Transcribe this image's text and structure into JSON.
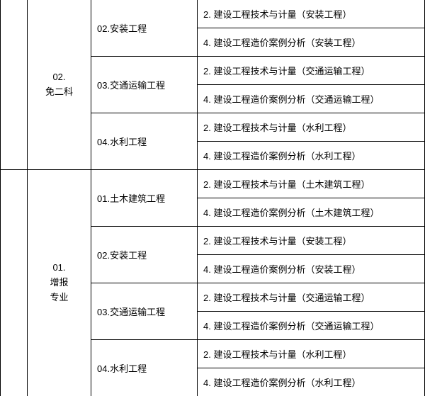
{
  "table": {
    "levels": [
      {
        "code": "02.",
        "name": "免二科",
        "specialties": [
          {
            "label": "02.安装工程",
            "subjects": [
              "2. 建设工程技术与计量（安装工程）",
              "4. 建设工程造价案例分析（安装工程）"
            ]
          },
          {
            "label": "03.交通运输工程",
            "subjects": [
              "2. 建设工程技术与计量（交通运输工程）",
              "4. 建设工程造价案例分析（交通运输工程）"
            ]
          },
          {
            "label": "04.水利工程",
            "subjects": [
              "2. 建设工程技术与计量（水利工程）",
              "4. 建设工程造价案例分析（水利工程）"
            ]
          }
        ]
      },
      {
        "code": "01.",
        "name": "增报",
        "name2": "专业",
        "specialties": [
          {
            "label": "01.土木建筑工程",
            "subjects": [
              "2. 建设工程技术与计量（土木建筑工程）",
              "4. 建设工程造价案例分析（土木建筑工程）"
            ]
          },
          {
            "label": "02.安装工程",
            "subjects": [
              "2. 建设工程技术与计量（安装工程）",
              "4. 建设工程造价案例分析（安装工程）"
            ]
          },
          {
            "label": "03.交通运输工程",
            "subjects": [
              "2. 建设工程技术与计量（交通运输工程）",
              "4. 建设工程造价案例分析（交通运输工程）"
            ]
          },
          {
            "label": "04.水利工程",
            "subjects": [
              "2. 建设工程技术与计量（水利工程）",
              "4. 建设工程造价案例分析（水利工程）"
            ]
          }
        ]
      }
    ]
  }
}
